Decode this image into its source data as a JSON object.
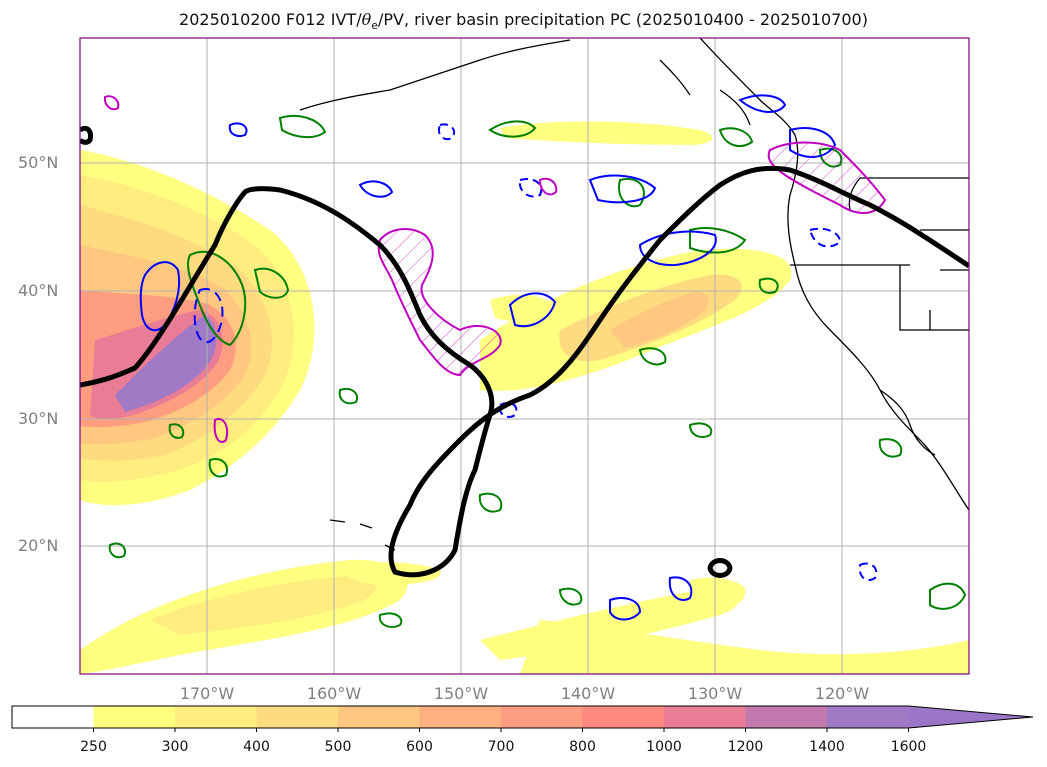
{
  "title": {
    "prefix": "2025010200 F012 IVT/",
    "theta": "θ",
    "theta_sub": "e",
    "suffix": "/PV, river basin precipitation PC (2025010400 - 2025010700)"
  },
  "map": {
    "lat_labels": [
      "50°N",
      "40°N",
      "30°N",
      "20°N"
    ],
    "lon_labels": [
      "170°W",
      "160°W",
      "150°W",
      "140°W",
      "130°W",
      "120°W"
    ],
    "frame_color": "#800080"
  },
  "colorbar": {
    "ticks": [
      "250",
      "300",
      "400",
      "500",
      "600",
      "700",
      "800",
      "1000",
      "1200",
      "1400",
      "1600"
    ],
    "colors": [
      "#ffffff",
      "#ffff80",
      "#ffed80",
      "#ffdb80",
      "#ffc780",
      "#ffb080",
      "#ff9d80",
      "#ff8880",
      "#e97d96",
      "#c27aae",
      "#a17ac6"
    ],
    "extend_color": "#9b76c8"
  },
  "contours": {
    "theta_e_color": "#000000",
    "pv_color": "#0000ff",
    "precip_color": "#008000",
    "basin_color": "#c000c0"
  }
}
